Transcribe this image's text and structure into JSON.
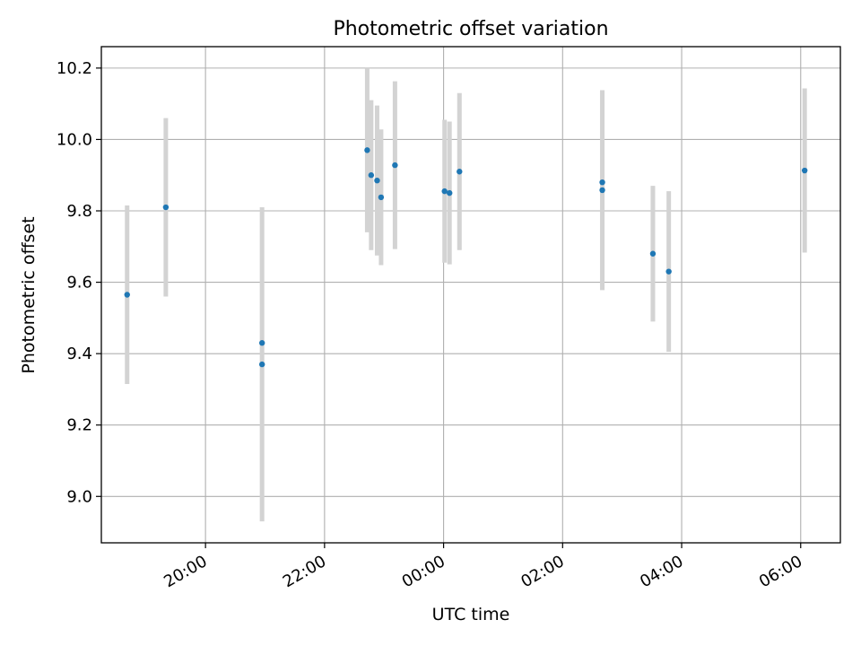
{
  "chart_data": {
    "type": "scatter",
    "title": "Photometric offset variation",
    "xlabel": "UTC time",
    "ylabel": "Photometric offset",
    "x_ticks": [
      {
        "label": "20:00",
        "hours": 20
      },
      {
        "label": "22:00",
        "hours": 22
      },
      {
        "label": "00:00",
        "hours": 24
      },
      {
        "label": "02:00",
        "hours": 26
      },
      {
        "label": "04:00",
        "hours": 28
      },
      {
        "label": "06:00",
        "hours": 30
      }
    ],
    "y_ticks": [
      "9.0",
      "9.2",
      "9.4",
      "9.6",
      "9.8",
      "10.0",
      "10.2"
    ],
    "xlim": [
      "18:15",
      "06:40"
    ],
    "ylim": [
      8.87,
      10.26
    ],
    "grid": true,
    "marker_color": "#1f77b4",
    "errorbar_color": "#d3d3d3",
    "points": [
      {
        "t": "18:41",
        "y": 9.565,
        "err": 0.25
      },
      {
        "t": "19:20",
        "y": 9.81,
        "err": 0.25
      },
      {
        "t": "20:57",
        "y": 9.43,
        "err": 0.0
      },
      {
        "t": "20:57",
        "y": 9.37,
        "err": 0.44
      },
      {
        "t": "22:43",
        "y": 9.97,
        "err": 0.23
      },
      {
        "t": "22:47",
        "y": 9.9,
        "err": 0.21
      },
      {
        "t": "22:53",
        "y": 9.885,
        "err": 0.21
      },
      {
        "t": "22:57",
        "y": 9.838,
        "err": 0.19
      },
      {
        "t": "23:11",
        "y": 9.928,
        "err": 0.235
      },
      {
        "t": "00:01",
        "y": 9.855,
        "err": 0.2
      },
      {
        "t": "00:06",
        "y": 9.85,
        "err": 0.2
      },
      {
        "t": "00:16",
        "y": 9.91,
        "err": 0.22
      },
      {
        "t": "02:40",
        "y": 9.88,
        "err": 0.0
      },
      {
        "t": "02:40",
        "y": 9.858,
        "err": 0.28
      },
      {
        "t": "03:31",
        "y": 9.68,
        "err": 0.19
      },
      {
        "t": "03:47",
        "y": 9.63,
        "err": 0.225
      },
      {
        "t": "06:04",
        "y": 9.913,
        "err": 0.23
      }
    ]
  }
}
